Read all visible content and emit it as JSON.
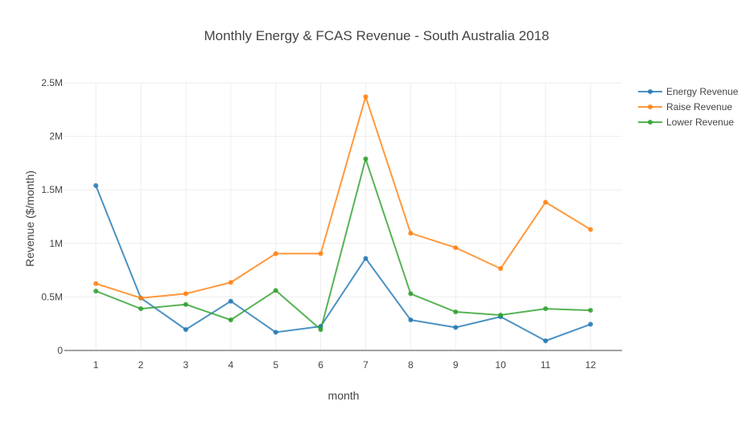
{
  "chart_data": {
    "type": "line",
    "title": "Monthly Energy & FCAS Revenue - South Australia 2018",
    "xlabel": "month",
    "ylabel": "Revenue ($/month)",
    "x": [
      1,
      2,
      3,
      4,
      5,
      6,
      7,
      8,
      9,
      10,
      11,
      12
    ],
    "x_tick_labels": [
      "1",
      "2",
      "3",
      "4",
      "5",
      "6",
      "7",
      "8",
      "9",
      "10",
      "11",
      "12"
    ],
    "xlim": [
      0.3,
      12.7
    ],
    "ylim": [
      0,
      2500000
    ],
    "y_ticks": [
      0,
      500000,
      1000000,
      1500000,
      2000000,
      2500000
    ],
    "y_tick_labels": [
      "0",
      "0.5M",
      "1M",
      "1.5M",
      "2M",
      "2.5M"
    ],
    "grid": true,
    "legend_position": "top-right",
    "series": [
      {
        "name": "Energy Revenue",
        "color": "#1f77b4",
        "values": [
          1540000,
          490000,
          195000,
          460000,
          170000,
          225000,
          860000,
          285000,
          215000,
          315000,
          90000,
          245000
        ]
      },
      {
        "name": "Raise Revenue",
        "color": "#ff7f0e",
        "values": [
          625000,
          490000,
          530000,
          635000,
          905000,
          905000,
          2370000,
          1095000,
          960000,
          765000,
          1385000,
          1130000
        ]
      },
      {
        "name": "Lower Revenue",
        "color": "#2ca02c",
        "values": [
          555000,
          390000,
          430000,
          285000,
          560000,
          195000,
          1790000,
          530000,
          360000,
          330000,
          390000,
          375000
        ]
      }
    ]
  }
}
